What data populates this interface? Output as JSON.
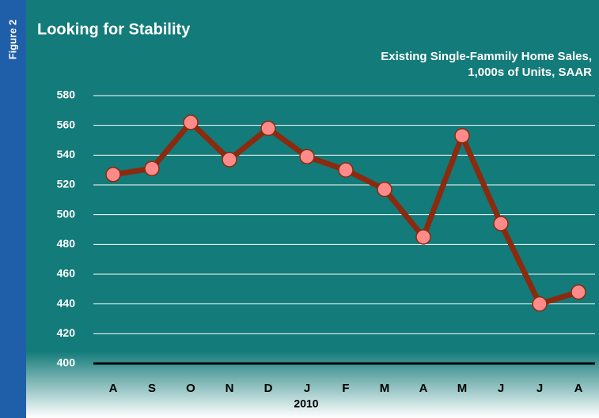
{
  "chart_data": {
    "type": "line",
    "figure_label": "Figure 2",
    "title": "Looking for Stability",
    "subtitle": [
      "Existing Single-Fammily Home Sales,",
      "1,000s of Units, SAAR"
    ],
    "categories": [
      "A",
      "S",
      "O",
      "N",
      "D",
      "J",
      "F",
      "M",
      "A",
      "M",
      "J",
      "J",
      "A"
    ],
    "x_group_label": "2010",
    "series": [
      {
        "color": "#8b2a0e",
        "marker_color": "#ff8a8a",
        "values": [
          527,
          531,
          562,
          537,
          558,
          539,
          530,
          517,
          485,
          553,
          494,
          440,
          448
        ]
      }
    ],
    "ylim": [
      400,
      580
    ],
    "yticks": [
      400,
      420,
      440,
      460,
      480,
      500,
      520,
      540,
      560,
      580
    ],
    "grid": true
  }
}
